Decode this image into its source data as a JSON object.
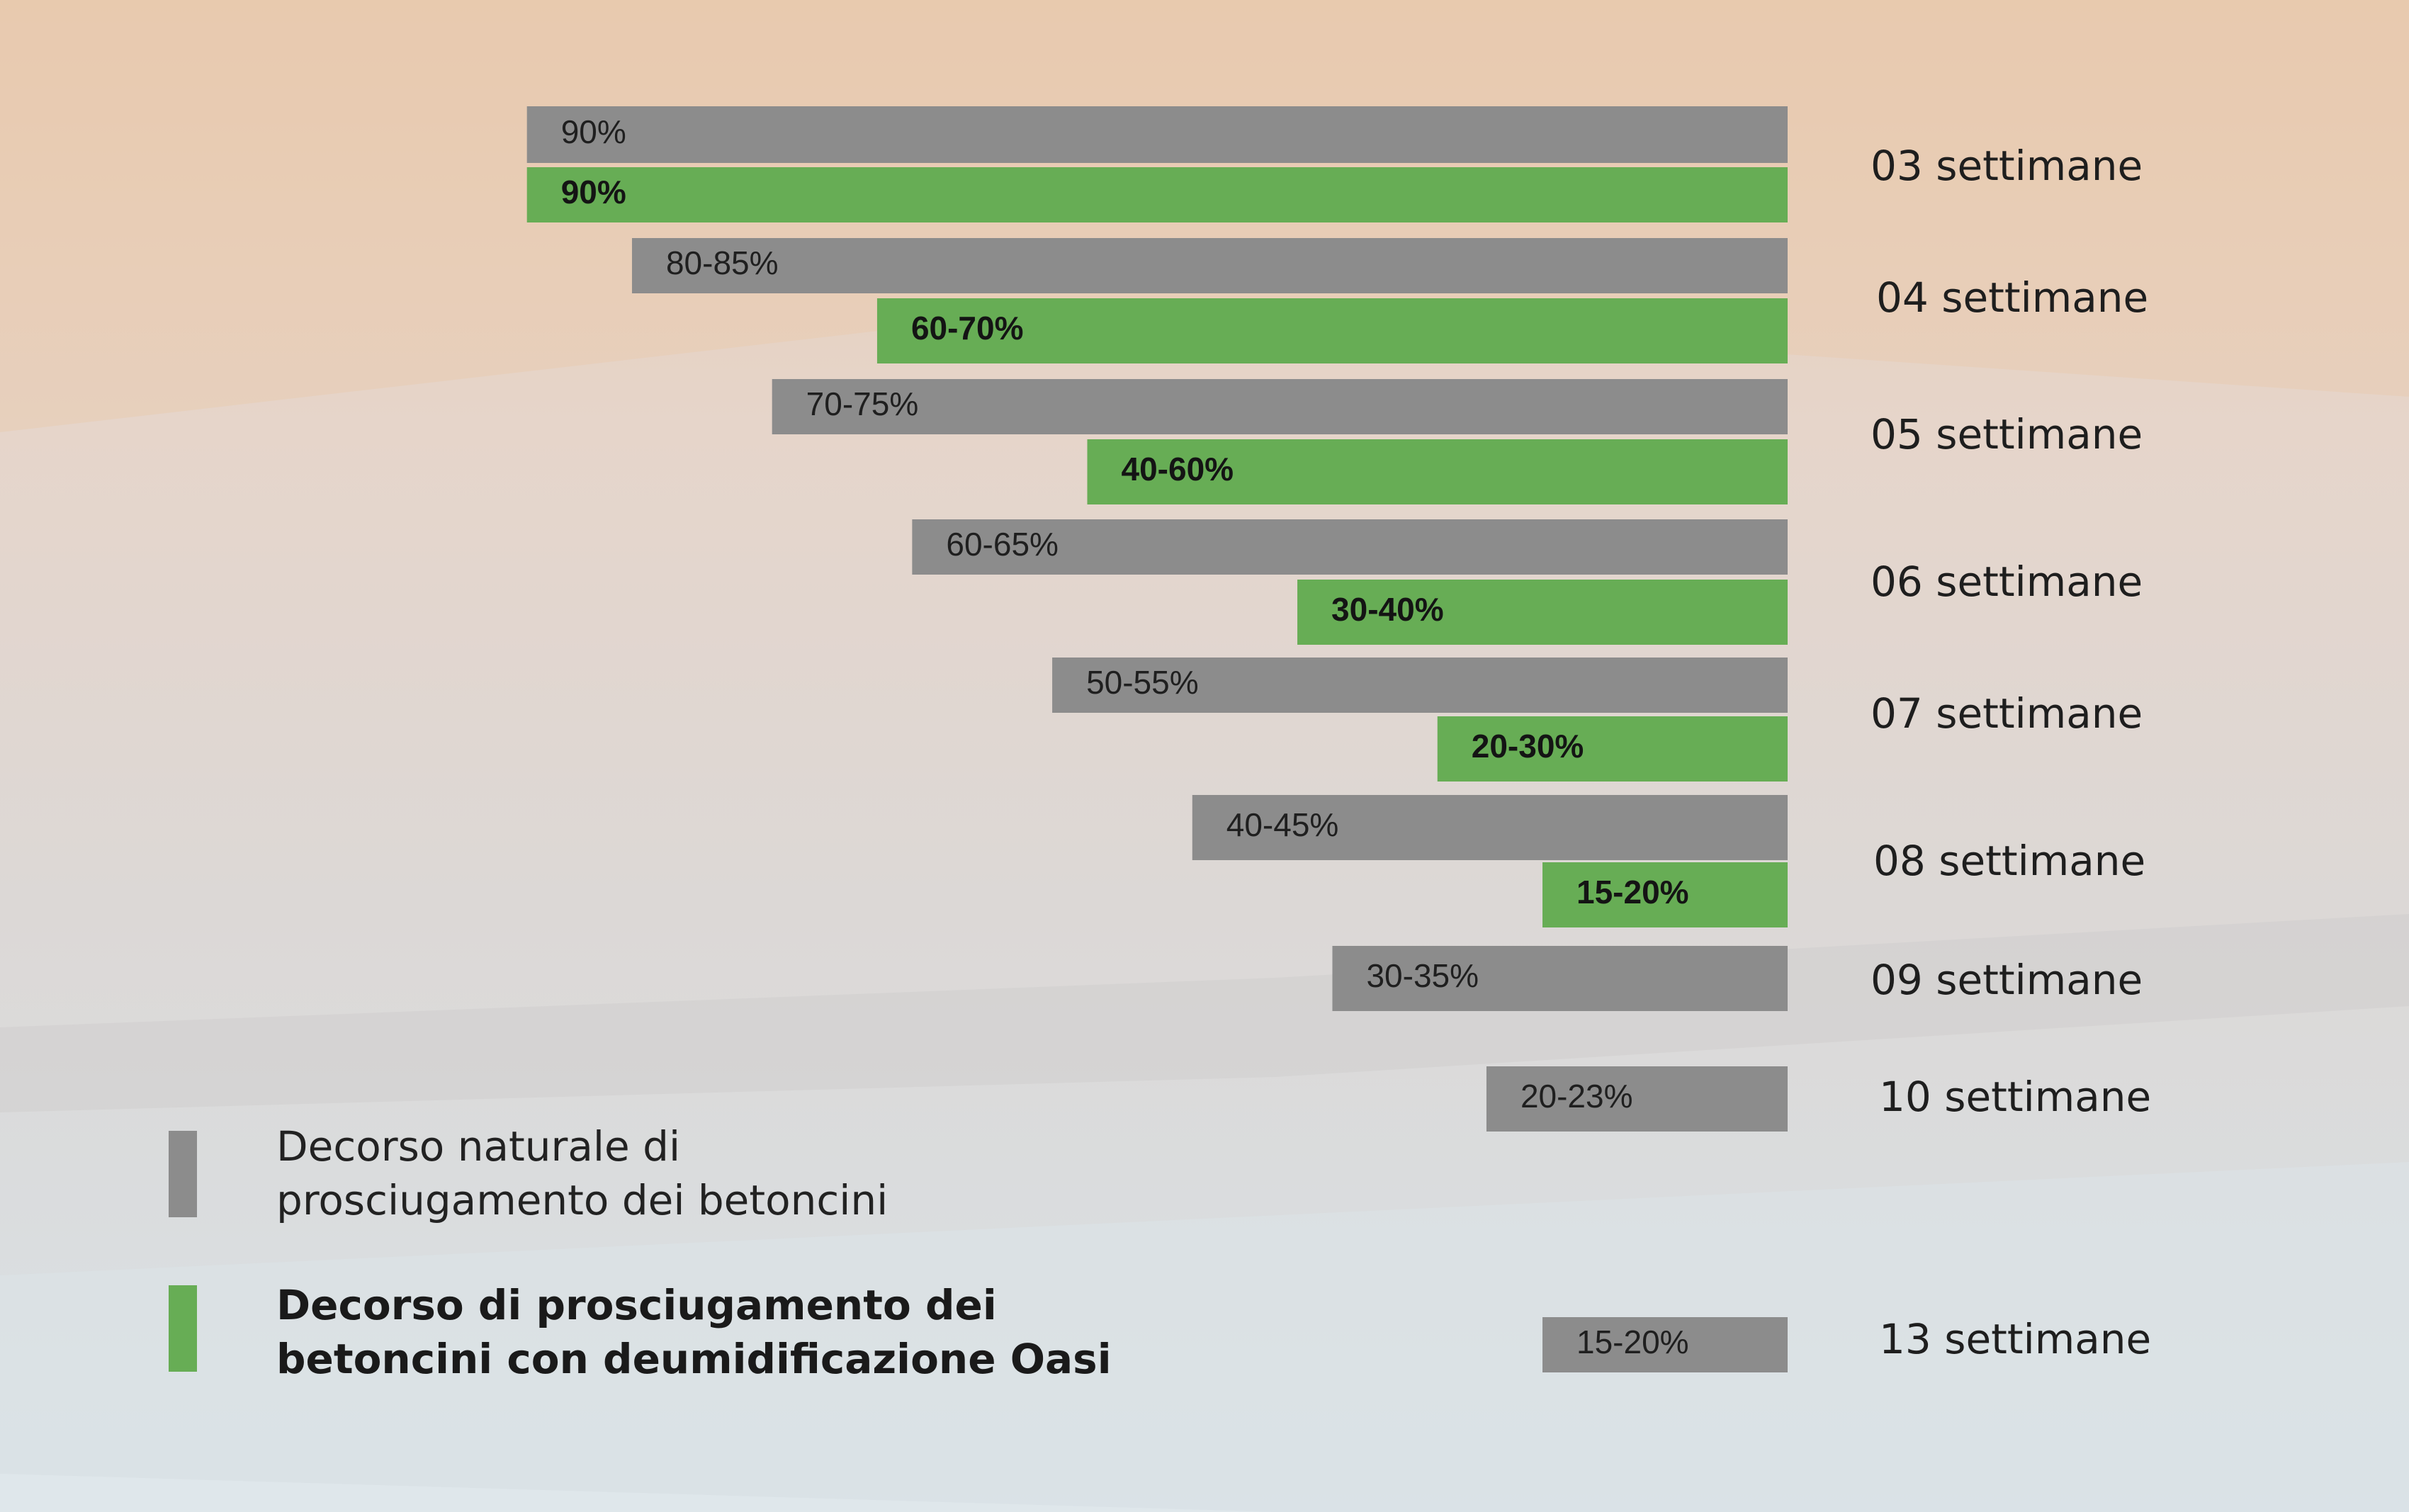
{
  "chart_data": {
    "type": "bar",
    "orientation": "horizontal",
    "categories": [
      "03 settimane",
      "04 settimane",
      "05 settimane",
      "06 settimane",
      "07 settimane",
      "08 settimane",
      "09 settimane",
      "10 settimane",
      "13 settimane"
    ],
    "series": [
      {
        "name": "Decorso naturale di prosciugamento dei betoncini",
        "color": "#8c8c8c",
        "values": [
          90,
          82.5,
          72.5,
          62.5,
          52.5,
          42.5,
          32.5,
          21.5,
          17.5
        ],
        "labels": [
          "90%",
          "80-85%",
          "70-75%",
          "60-65%",
          "50-55%",
          "40-45%",
          "30-35%",
          "20-23%",
          "15-20%"
        ]
      },
      {
        "name": "Decorso di prosciugamento dei betoncini con deumidificazione Oasi",
        "color": "#67ad55",
        "values": [
          90,
          65,
          50,
          35,
          25,
          17.5,
          null,
          null,
          null
        ],
        "labels": [
          "90%",
          "60-70%",
          "40-60%",
          "30-40%",
          "20-30%",
          "15-20%",
          null,
          null,
          null
        ]
      }
    ],
    "legend": {
      "position": "bottom-left",
      "natural_line1": "Decorso naturale di",
      "natural_line2": "prosciugamento dei betoncini",
      "oasi_line1": "Decorso di prosciugamento dei",
      "oasi_line2": "betoncini con deumidificazione Oasi"
    },
    "grid": false,
    "title": "",
    "xlabel": "",
    "ylabel": ""
  }
}
